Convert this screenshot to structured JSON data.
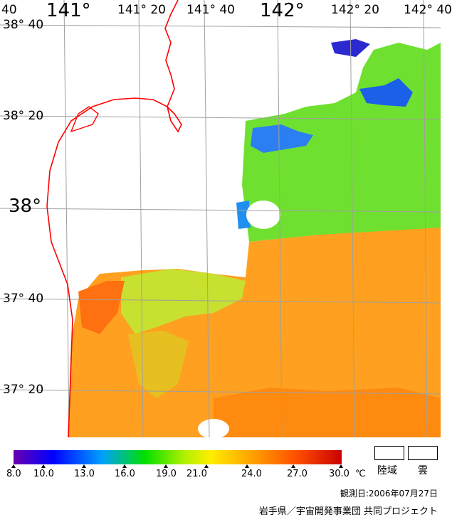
{
  "map": {
    "lon_labels": [
      "141°",
      "141° 20",
      "141° 40",
      "142°",
      "142° 20",
      "142° 40"
    ],
    "lat_labels": [
      "38° 40",
      "38° 20",
      "38°",
      "37° 40",
      "37° 20"
    ],
    "land_color": "#ffffff",
    "coastline_color": "#ff0000",
    "graticule_color": "#a0a0a0"
  },
  "legend": {
    "ticks": [
      "8.0",
      "10.0",
      "13.0",
      "16.0",
      "19.0",
      "21.0",
      "24.0",
      "27.0",
      "30.0"
    ],
    "unit": "℃",
    "land_label": "陸域",
    "cloud_label": "雲",
    "colors": [
      "#6a00b0",
      "#0000ff",
      "#00a0ff",
      "#00e000",
      "#b0f000",
      "#ffee00",
      "#ffa000",
      "#ff5000",
      "#cc0000"
    ]
  },
  "footer": {
    "observation_date": "観測日:2006年07月27日",
    "credit": "岩手県／宇宙開発事業団 共同プロジェクト"
  }
}
